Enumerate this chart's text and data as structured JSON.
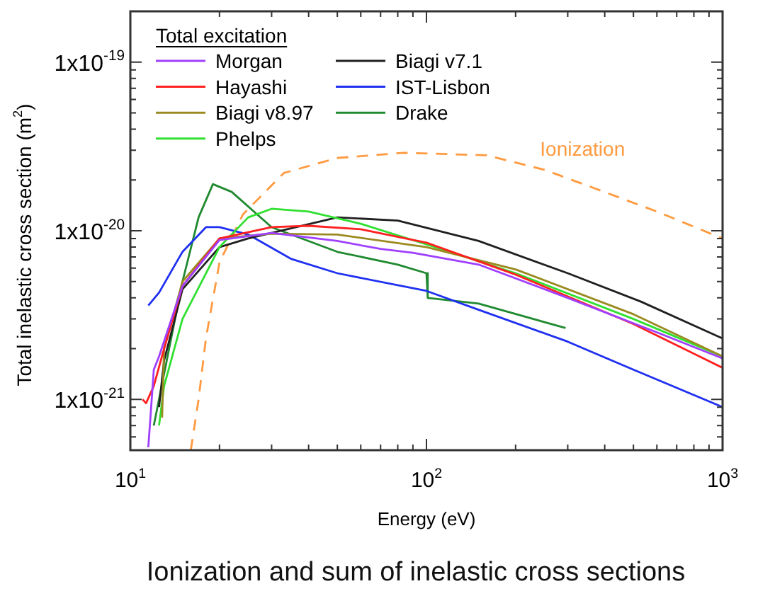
{
  "chart_data": {
    "type": "line",
    "title": "Ionization and sum of inelastic cross sections",
    "xlabel": "Energy (eV)",
    "ylabel": "Total inelastic cross section (m$^{2}$)",
    "legend_title": "Total excitation",
    "legend": "top left",
    "log": "xy",
    "grid": false,
    "marker": "none",
    "xlim": [
      10,
      1000
    ],
    "xticks": [
      {
        "value": 10,
        "label": "10$^{1}$"
      },
      {
        "value": 20,
        "label": null
      },
      {
        "value": 30,
        "label": null
      },
      {
        "value": 40,
        "label": null
      },
      {
        "value": 50,
        "label": null
      },
      {
        "value": 60,
        "label": null
      },
      {
        "value": 70,
        "label": null
      },
      {
        "value": 80,
        "label": null
      },
      {
        "value": 90,
        "label": null
      },
      {
        "value": 100,
        "label": "10$^{2}$"
      },
      {
        "value": 200,
        "label": null
      },
      {
        "value": 300,
        "label": null
      },
      {
        "value": 400,
        "label": null
      },
      {
        "value": 500,
        "label": null
      },
      {
        "value": 600,
        "label": null
      },
      {
        "value": 700,
        "label": null
      },
      {
        "value": 800,
        "label": null
      },
      {
        "value": 900,
        "label": null
      },
      {
        "value": 1000,
        "label": "10$^{3}$"
      }
    ],
    "ylim": [
      5e-22,
      2e-19
    ],
    "yticks": [
      {
        "value": 6e-22,
        "label": null
      },
      {
        "value": 7e-22,
        "label": null
      },
      {
        "value": 8e-22,
        "label": null
      },
      {
        "value": 9e-22,
        "label": null
      },
      {
        "value": 1e-21,
        "label": "1x10$^{-21}$"
      },
      {
        "value": 2e-21,
        "label": null
      },
      {
        "value": 3e-21,
        "label": null
      },
      {
        "value": 4e-21,
        "label": null
      },
      {
        "value": 5e-21,
        "label": null
      },
      {
        "value": 6e-21,
        "label": null
      },
      {
        "value": 7e-21,
        "label": null
      },
      {
        "value": 8e-21,
        "label": null
      },
      {
        "value": 9e-21,
        "label": null
      },
      {
        "value": 1e-20,
        "label": "1x10$^{-20}$"
      },
      {
        "value": 2e-20,
        "label": null
      },
      {
        "value": 3e-20,
        "label": null
      },
      {
        "value": 4e-20,
        "label": null
      },
      {
        "value": 5e-20,
        "label": null
      },
      {
        "value": 6e-20,
        "label": null
      },
      {
        "value": 7e-20,
        "label": null
      },
      {
        "value": 8e-20,
        "label": null
      },
      {
        "value": 9e-20,
        "label": null
      },
      {
        "value": 1e-19,
        "label": "1x10$^{-19}$"
      },
      {
        "value": 2e-19,
        "label": null
      }
    ],
    "series": [
      {
        "name": "Morgan",
        "color": "#a040ff",
        "line_style": "solid",
        "x": [
          11.5,
          12,
          12.5,
          15,
          20,
          30,
          50,
          70,
          90,
          150,
          300,
          600,
          1000
        ],
        "values": [
          5.2e-22,
          1.5e-21,
          1.8e-21,
          4.7e-21,
          8.8e-21,
          9.7e-21,
          8.7e-21,
          7.8e-21,
          7.4e-21,
          6.3e-21,
          4e-21,
          2.5e-21,
          1.75e-21
        ]
      },
      {
        "name": "Hayashi",
        "color": "#ff2020",
        "line_style": "solid",
        "x": [
          11,
          11.3,
          12,
          13,
          15,
          20,
          30,
          40,
          60,
          100,
          200,
          500,
          1000
        ],
        "values": [
          1e-21,
          9.5e-22,
          1.2e-21,
          2e-21,
          4.7e-21,
          9e-21,
          1.05e-20,
          1.07e-20,
          1.02e-20,
          8.5e-21,
          5.5e-21,
          2.8e-21,
          1.54e-21
        ]
      },
      {
        "name": "Biagi v8.97",
        "color": "#9a8a20",
        "line_style": "solid",
        "x": [
          12.8,
          13,
          15,
          20,
          30,
          50,
          100,
          200,
          500,
          1000
        ],
        "values": [
          7.8e-22,
          2e-21,
          5e-21,
          9e-21,
          9.6e-21,
          9.5e-21,
          8e-21,
          5.9e-21,
          3.2e-21,
          1.8e-21
        ]
      },
      {
        "name": "Phelps",
        "color": "#30e030",
        "line_style": "solid",
        "x": [
          12.5,
          13,
          15,
          20,
          25,
          30,
          40,
          60,
          100,
          200,
          500,
          1000
        ],
        "values": [
          7e-22,
          1.2e-21,
          3e-21,
          8e-21,
          1.2e-20,
          1.35e-20,
          1.3e-20,
          1.1e-20,
          8.3e-21,
          5.6e-21,
          3e-21,
          1.8e-21
        ]
      },
      {
        "name": "Biagi v7.1",
        "color": "#202020",
        "line_style": "solid",
        "x": [
          12.5,
          13,
          15,
          20,
          25,
          50,
          80,
          150,
          300,
          530,
          1000
        ],
        "values": [
          9e-22,
          1.7e-21,
          4.5e-21,
          8e-21,
          9e-21,
          1.2e-20,
          1.15e-20,
          8.7e-21,
          5.6e-21,
          3.8e-21,
          2.3e-21
        ]
      },
      {
        "name": "IST-Lisbon",
        "color": "#2030f0",
        "line_style": "solid",
        "x": [
          11.5,
          12.5,
          15,
          18,
          20,
          25,
          35,
          50,
          100,
          150,
          300,
          500,
          1000
        ],
        "values": [
          3.6e-21,
          4.3e-21,
          7.5e-21,
          1.05e-20,
          1.05e-20,
          9.5e-21,
          6.8e-21,
          5.6e-21,
          4.4e-21,
          3.4e-21,
          2.2e-21,
          1.5e-21,
          9e-22
        ]
      },
      {
        "name": "Drake",
        "color": "#208a30",
        "line_style": "solid",
        "x": [
          12,
          15,
          17,
          19,
          22,
          30,
          50,
          80,
          100,
          101,
          150,
          295
        ],
        "values": [
          7e-22,
          5e-21,
          1.2e-20,
          1.89e-20,
          1.7e-20,
          1.05e-20,
          7.5e-21,
          6.3e-21,
          5.6e-21,
          4e-21,
          3.7e-21,
          2.65e-21
        ]
      },
      {
        "name": "Ionization",
        "color": "#ff9a40",
        "line_style": "dashed",
        "x": [
          16,
          17,
          18,
          20,
          24,
          33,
          50,
          84,
          160,
          250,
          350,
          600,
          1000
        ],
        "values": [
          5e-22,
          1e-21,
          2.3e-21,
          6.5e-21,
          1.25e-20,
          2.2e-20,
          2.7e-20,
          2.9e-20,
          2.8e-20,
          2.3e-20,
          1.85e-20,
          1.3e-20,
          9e-21
        ]
      }
    ]
  }
}
